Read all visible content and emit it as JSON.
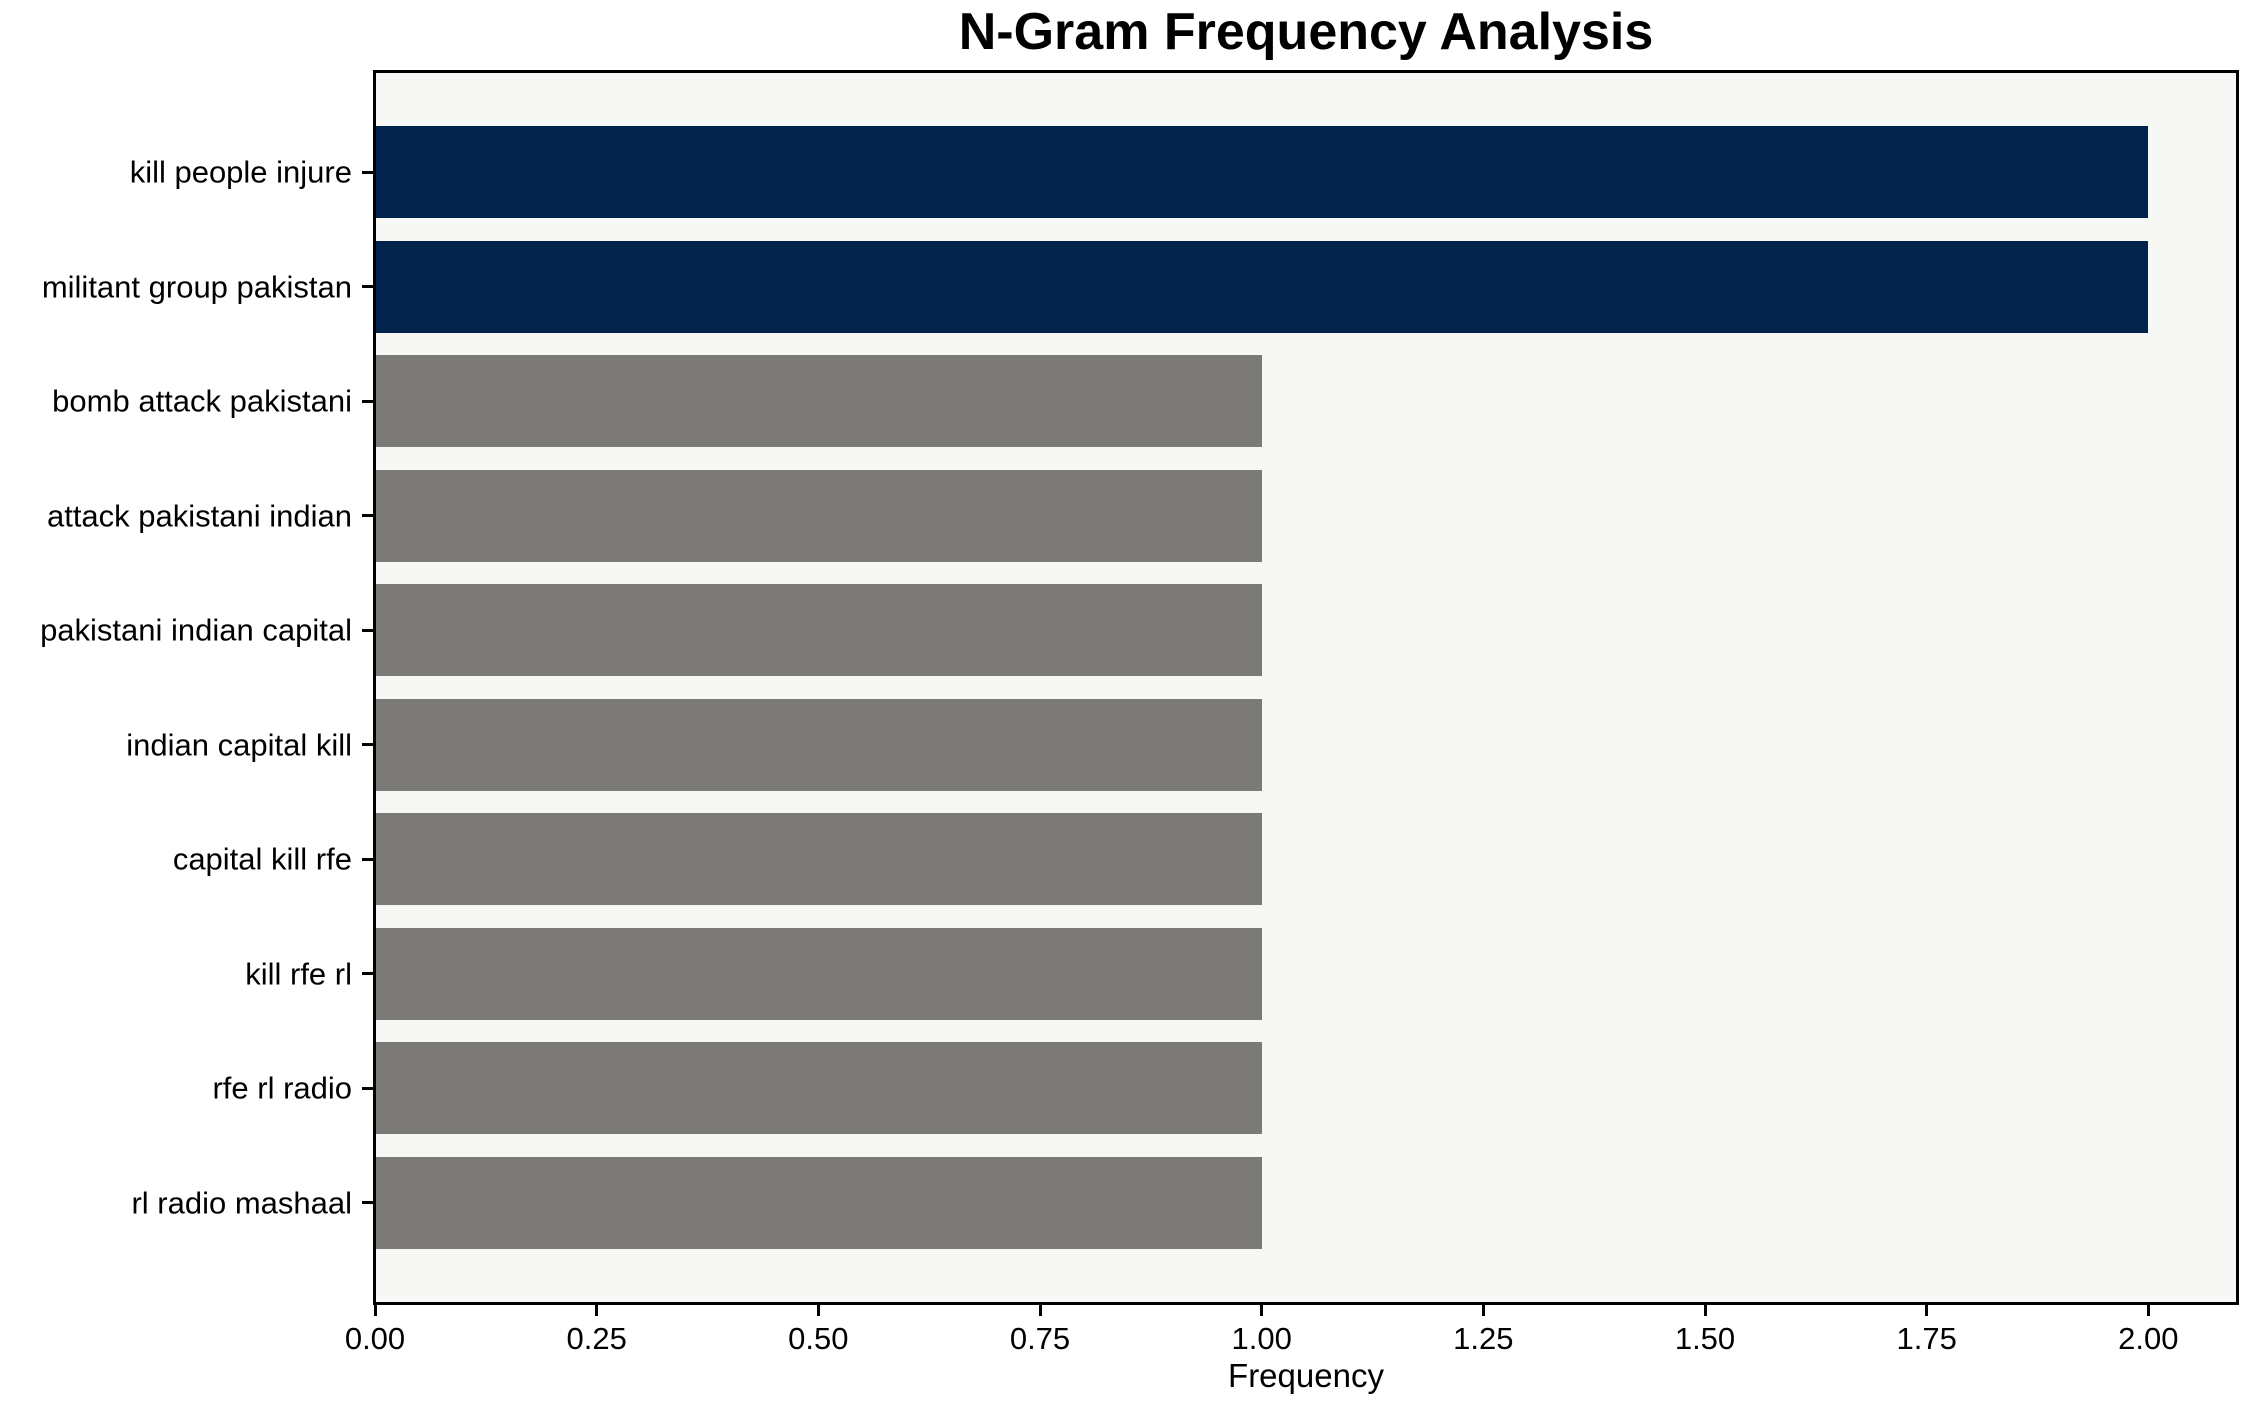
{
  "chart_data": {
    "type": "bar",
    "orientation": "horizontal",
    "title": "N-Gram Frequency Analysis",
    "xlabel": "Frequency",
    "ylabel": "",
    "categories": [
      "kill people injure",
      "militant group pakistan",
      "bomb attack pakistani",
      "attack pakistani indian",
      "pakistani indian capital",
      "indian capital kill",
      "capital kill rfe",
      "kill rfe rl",
      "rfe rl radio",
      "rl radio mashaal"
    ],
    "values": [
      2,
      2,
      1,
      1,
      1,
      1,
      1,
      1,
      1,
      1
    ],
    "bar_colors": [
      "#02234c",
      "#02234c",
      "#7b7a76",
      "#7b7a76",
      "#7b7a76",
      "#7b7a76",
      "#7b7a76",
      "#7b7a76",
      "#7b7a76",
      "#7b7a76"
    ],
    "colors": {
      "highlight": "#02234c",
      "muted": "#7b7a76",
      "plot_background": "#f7f7f6",
      "figure_background": "#ffffff",
      "axis": "#000000"
    },
    "x_ticks": [
      "0.00",
      "0.25",
      "0.50",
      "0.75",
      "1.00",
      "1.25",
      "1.50",
      "1.75",
      "2.00"
    ],
    "x_tick_values": [
      0,
      0.25,
      0.5,
      0.75,
      1,
      1.25,
      1.5,
      1.75,
      2
    ],
    "xlim": [
      0,
      2.1
    ],
    "grid": false,
    "legend": false
  }
}
